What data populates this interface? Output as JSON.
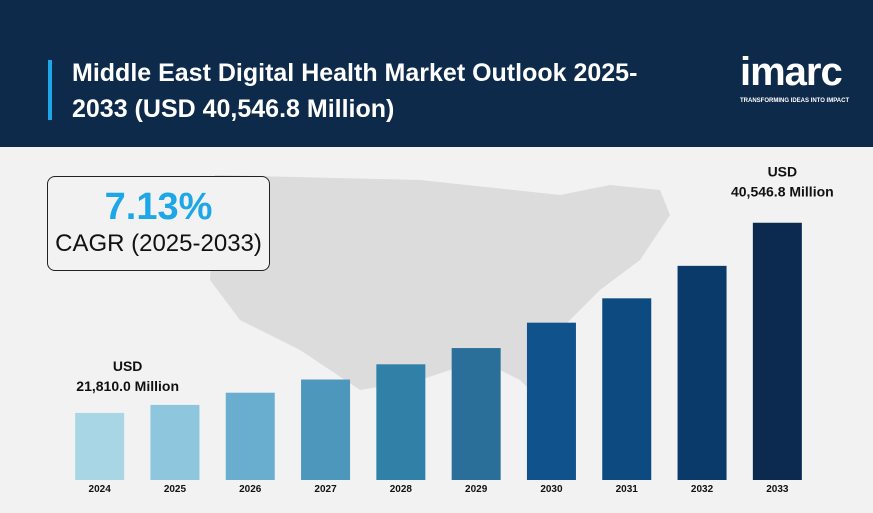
{
  "chart_data": {
    "type": "bar",
    "title": "Middle East Digital Health Market Outlook 2025-2033 (USD 40,546.8 Million)",
    "categories": [
      "2024",
      "2025",
      "2026",
      "2027",
      "2028",
      "2029",
      "2030",
      "2031",
      "2032",
      "2033"
    ],
    "values": [
      21810.0,
      22600,
      23800,
      25100,
      26600,
      28200,
      30700,
      33100,
      36300,
      40546.8
    ],
    "value_labels": [
      [
        "USD",
        "21,810.0 Million"
      ],
      null,
      null,
      null,
      null,
      null,
      null,
      null,
      null,
      [
        "USD",
        "40,546.8 Million"
      ]
    ],
    "colors": [
      "#a9d6e5",
      "#8ec6de",
      "#6aaecf",
      "#4d97bc",
      "#3080a8",
      "#2a6f9a",
      "#0f528c",
      "#0c4a80",
      "#0a3a6a",
      "#0c2a4f"
    ],
    "ylim": [
      15200,
      42000
    ]
  },
  "cagr": {
    "value": "7.13%",
    "label": "CAGR (2025-2033)"
  },
  "logo": {
    "name": "imarc",
    "tagline": "TRANSFORMING IDEAS INTO IMPACT"
  }
}
